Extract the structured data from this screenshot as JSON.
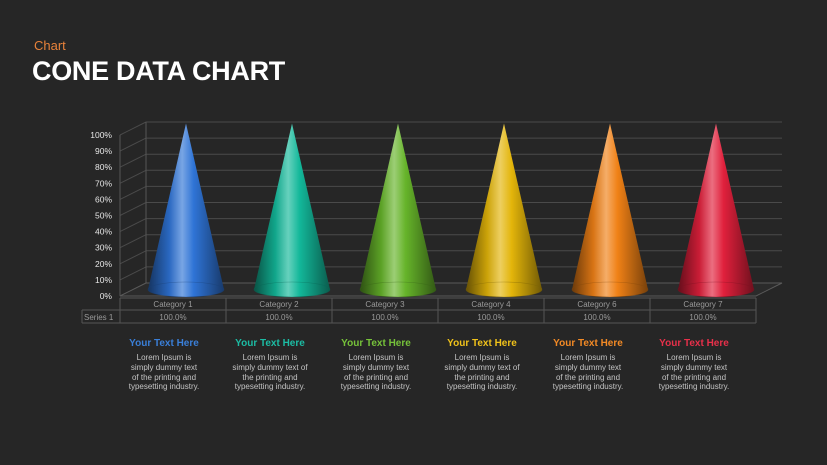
{
  "header": {
    "eyebrow": "Chart",
    "title": "CONE DATA CHART"
  },
  "chart_data": {
    "type": "bar",
    "style": "3d-cone",
    "categories": [
      "Category 1",
      "Category 2",
      "Category 3",
      "Category 4",
      "Category 6",
      "Category 7"
    ],
    "series": [
      {
        "name": "Series 1",
        "values": [
          100,
          100,
          100,
          100,
          100,
          100
        ],
        "value_labels": [
          "100.0%",
          "100.0%",
          "100.0%",
          "100.0%",
          "100.0%",
          "100.0%"
        ]
      }
    ],
    "ylim": [
      0,
      100
    ],
    "y_ticks": [
      "0%",
      "10%",
      "20%",
      "30%",
      "40%",
      "50%",
      "60%",
      "70%",
      "80%",
      "90%",
      "100%"
    ],
    "grid": true,
    "data_table": true,
    "colors": [
      "#2f74d6",
      "#13b89a",
      "#66b42a",
      "#e3b50a",
      "#f08116",
      "#e0203c"
    ]
  },
  "descriptions": [
    {
      "heading": "Your Text Here",
      "color": "#3a7fd8",
      "body": [
        "Lorem Ipsum is",
        "simply dummy text",
        "of the printing and",
        "typesetting industry."
      ]
    },
    {
      "heading": "Your Text Here",
      "color": "#1cbca4",
      "body": [
        "Lorem Ipsum is",
        "simply dummy text of",
        "the printing and",
        "typesetting industry."
      ]
    },
    {
      "heading": "Your Text Here",
      "color": "#76c23a",
      "body": [
        "Lorem Ipsum is",
        "simply dummy text",
        "of the printing and",
        "typesetting industry."
      ]
    },
    {
      "heading": "Your Text Here",
      "color": "#f0c21a",
      "body": [
        "Lorem Ipsum is",
        "simply dummy text of",
        "the printing and",
        "typesetting industry."
      ]
    },
    {
      "heading": "Your Text Here",
      "color": "#f38a25",
      "body": [
        "Lorem Ipsum is",
        "simply dummy text",
        "of the printing and",
        "typesetting industry."
      ]
    },
    {
      "heading": "Your Text Here",
      "color": "#e8304a",
      "body": [
        "Lorem Ipsum is",
        "simply dummy text",
        "of the printing and",
        "typesetting industry."
      ]
    }
  ]
}
